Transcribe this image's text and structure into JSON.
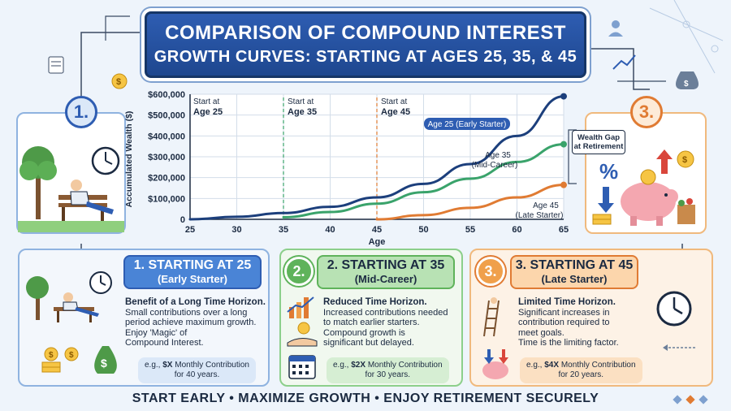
{
  "title": {
    "line1": "COMPARISON OF COMPOUND INTEREST",
    "line2": "GROWTH CURVES: STARTING AT AGES 25, 35, & 45"
  },
  "chart_data": {
    "type": "line",
    "xlabel": "Age",
    "ylabel": "Accumulated Wealth ($)",
    "xlim": [
      25,
      65
    ],
    "ylim": [
      0,
      600000
    ],
    "x_ticks": [
      "25",
      "30",
      "35",
      "40",
      "45",
      "50",
      "55",
      "60",
      "65"
    ],
    "y_ticks": [
      "0",
      "$100,000",
      "$200,000",
      "$300,000",
      "$400,000",
      "$500,000",
      "$600,000"
    ],
    "start_markers": [
      {
        "line1": "Start at",
        "line2": "Age 25",
        "x": 25,
        "color": "#1c3f7c"
      },
      {
        "line1": "Start at",
        "line2": "Age 35",
        "x": 35,
        "color": "#3aa36b"
      },
      {
        "line1": "Start at",
        "line2": "Age 45",
        "x": 45,
        "color": "#e07b33"
      }
    ],
    "series": [
      {
        "name": "Age 25 (Early Starter)",
        "color": "#1c3f7c",
        "x": [
          25,
          30,
          35,
          40,
          45,
          50,
          55,
          60,
          65
        ],
        "y": [
          0,
          12000,
          30000,
          60000,
          105000,
          170000,
          265000,
          400000,
          590000
        ]
      },
      {
        "name": "Age 35 (Mid-Career)",
        "color": "#3aa36b",
        "x": [
          35,
          40,
          45,
          50,
          55,
          60,
          65
        ],
        "y": [
          10000,
          35000,
          75000,
          130000,
          195000,
          275000,
          360000
        ]
      },
      {
        "name": "Age 45 (Late Starter)",
        "color": "#e07b33",
        "x": [
          45,
          50,
          55,
          60,
          65
        ],
        "y": [
          0,
          20000,
          55000,
          105000,
          165000
        ]
      }
    ],
    "annotations": {
      "early": "Age 25 (Early Starter)",
      "mid1": "Age 35",
      "mid2": "(Mid-Career)",
      "late1": "Age 45",
      "late2": "(Late Starter)",
      "gap1": "Wealth Gap",
      "gap2": "at Retirement"
    }
  },
  "side_badges": {
    "left": "1.",
    "right": "3."
  },
  "cards": [
    {
      "badge": "",
      "title": "1. STARTING AT 25",
      "subtitle": "(Early Starter)",
      "heading": "Benefit of a Long Time Horizon.",
      "text": [
        "Small contributions over a long",
        "period achieve maximum growth.",
        "Enjoy 'Magic' of",
        "Compound Interest."
      ],
      "contrib_pre": "e.g., ",
      "contrib_amount": "$X",
      "contrib_post": " Monthly Contribution",
      "contrib_line2": "for 40 years."
    },
    {
      "badge": "2.",
      "title": "2. STARTING AT 35",
      "subtitle": "(Mid-Career)",
      "heading": "Reduced Time Horizon.",
      "text": [
        "Increased contributions needed",
        "to match earlier starters.",
        "Compound growth is",
        "significant but delayed."
      ],
      "contrib_pre": "e.g., ",
      "contrib_amount": "$2X",
      "contrib_post": " Monthly Contribution",
      "contrib_line2": "for 30 years."
    },
    {
      "badge": "3.",
      "title": "3. STARTING AT 45",
      "subtitle": "(Late Starter)",
      "heading": "Limited Time Horizon.",
      "text": [
        "Significant increases in",
        "contribution required to",
        "meet goals.",
        "Time is the limiting factor."
      ],
      "contrib_pre": "e.g., ",
      "contrib_amount": "$4X",
      "contrib_post": " Monthly Contribution",
      "contrib_line2": "for 20 years."
    }
  ],
  "footer": "START EARLY • MAXIMIZE GROWTH • ENJOY RETIREMENT SECURELY",
  "colors": {
    "navy": "#1c3f7c",
    "green": "#3aa36b",
    "orange": "#e07b33",
    "blue_card": "#dbe8f8",
    "green_card": "#e3f3e3",
    "orange_card": "#fdebd8"
  },
  "icons": [
    "man-on-bench-icon",
    "clock-icon",
    "tree-icon",
    "dollar-coin-icon",
    "money-bag-icon",
    "growth-chart-icon",
    "hand-coin-icon",
    "calendar-icon",
    "ladder-icon",
    "piggy-bank-icon",
    "percent-icon",
    "person-icon"
  ]
}
